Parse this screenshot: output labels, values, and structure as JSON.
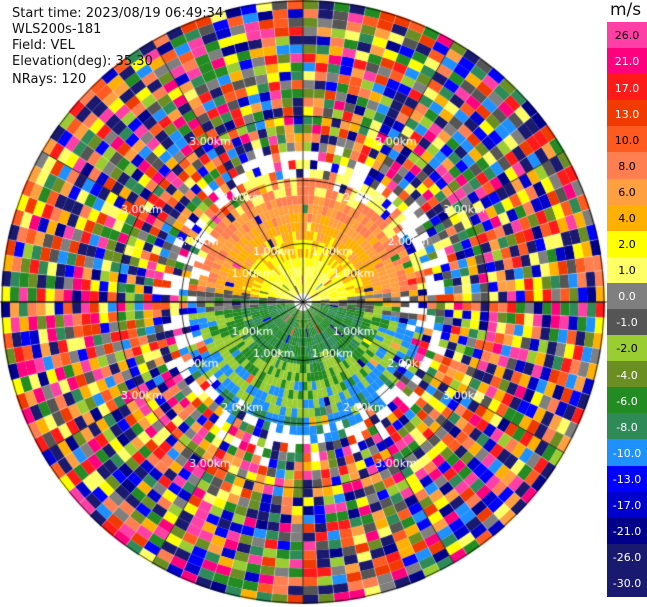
{
  "header": {
    "start_time": "Start time: 2023/08/19 06:49:34",
    "instrument": "WLS200s-181",
    "field": "Field: VEL",
    "elevation": "Elevation(deg): 35.30",
    "nrays": "NRays: 120"
  },
  "chart_data": {
    "type": "heatmap",
    "projection": "polar PPI",
    "field": "VEL",
    "unit": "m/s",
    "rays": 120,
    "range_rings_km": [
      1.0,
      2.0,
      3.0
    ],
    "ring_labels": [
      "1.00km",
      "2.00km",
      "3.00km"
    ],
    "spokes_deg": [
      0,
      30,
      60,
      90,
      120,
      150,
      180,
      210,
      240,
      270,
      300,
      330
    ],
    "color_scale": {
      "labels": [
        "26.0",
        "21.0",
        "17.0",
        "13.0",
        "10.0",
        "8.0",
        "6.0",
        "4.0",
        "2.0",
        "1.0",
        "0.0",
        "-1.0",
        "-2.0",
        "-4.0",
        "-6.0",
        "-8.0",
        "-10.0",
        "-13.0",
        "-17.0",
        "-21.0",
        "-26.0",
        "-30.0"
      ],
      "colors": [
        "#ff3fa5",
        "#ff007f",
        "#ff1a1a",
        "#f03a00",
        "#ff5a1f",
        "#ff7f50",
        "#ffa040",
        "#ffb000",
        "#ffff00",
        "#ffff66",
        "#7f7f7f",
        "#555555",
        "#9acd32",
        "#6b8e23",
        "#228b22",
        "#2e8b57",
        "#1e90ff",
        "#0000ff",
        "#0000cd",
        "#00008b",
        "#191970",
        "#191970"
      ]
    },
    "near_field_pattern": {
      "north_half": "positive, approx. 1 to 8 m/s (yellow-orange)",
      "south_half": "negative, approx. -2 to -10 m/s (green-blue)",
      "outer_range": "noise (all colors)"
    }
  }
}
